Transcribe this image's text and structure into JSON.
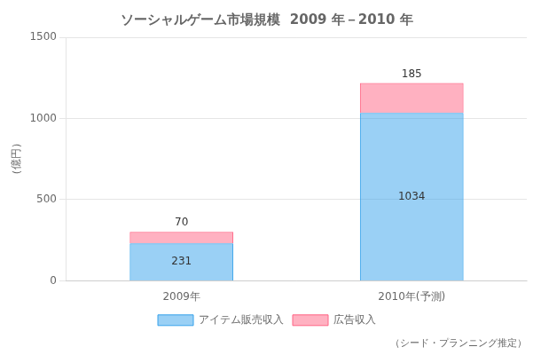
{
  "chart_data": {
    "type": "bar",
    "title": "ソーシャルゲーム市場規模  2009 年－2010 年",
    "categories": [
      "2009年",
      "2010年(予測)"
    ],
    "series": [
      {
        "name": "アイテム販売収入",
        "values": [
          231,
          1034
        ]
      },
      {
        "name": "広告収入",
        "values": [
          70,
          185
        ]
      }
    ],
    "stacked": true,
    "ylabel": "（億円）",
    "ylim": [
      0,
      1500
    ],
    "yticks": [
      0,
      500,
      1000,
      1500
    ],
    "grid": "y",
    "legend": "bottom",
    "data_labels": true,
    "footnote": "（シード・プランニング推定）"
  }
}
